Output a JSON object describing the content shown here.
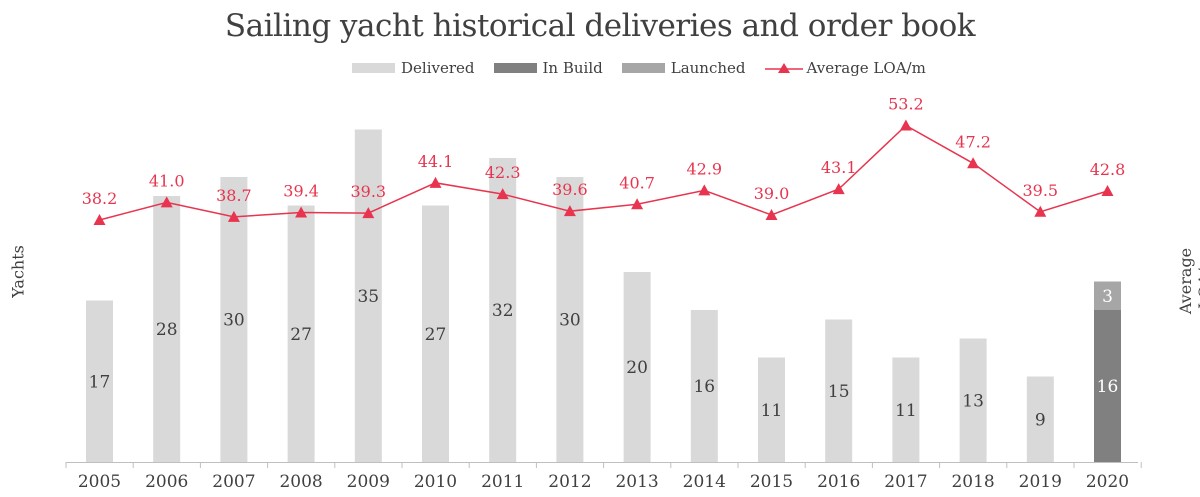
{
  "chart_data": {
    "type": "bar",
    "title": "Sailing yacht historical deliveries and order book",
    "ylabel": "Yachts",
    "y2label": "Average LOA/m",
    "categories": [
      "2005",
      "2006",
      "2007",
      "2008",
      "2009",
      "2010",
      "2011",
      "2012",
      "2013",
      "2014",
      "2015",
      "2016",
      "2017",
      "2018",
      "2019",
      "2020"
    ],
    "series": [
      {
        "name": "Delivered",
        "type": "bar",
        "color": "#d9d9d9",
        "values": [
          17,
          28,
          30,
          27,
          35,
          27,
          32,
          30,
          20,
          16,
          11,
          15,
          11,
          13,
          9,
          null
        ]
      },
      {
        "name": "In Build",
        "type": "bar",
        "color": "#808080",
        "values": [
          null,
          null,
          null,
          null,
          null,
          null,
          null,
          null,
          null,
          null,
          null,
          null,
          null,
          null,
          null,
          16
        ]
      },
      {
        "name": "Launched",
        "type": "bar",
        "color": "#a6a6a6",
        "values": [
          null,
          null,
          null,
          null,
          null,
          null,
          null,
          null,
          null,
          null,
          null,
          null,
          null,
          null,
          null,
          3
        ]
      },
      {
        "name": "Average LOA/m",
        "type": "line",
        "color": "#e8344e",
        "marker": "triangle",
        "values": [
          38.2,
          41.0,
          38.7,
          39.4,
          39.3,
          44.1,
          42.3,
          39.6,
          40.7,
          42.9,
          39.0,
          43.1,
          53.2,
          47.2,
          39.5,
          42.8
        ]
      }
    ],
    "stacked": true,
    "legend_position": "top",
    "grid": false
  }
}
